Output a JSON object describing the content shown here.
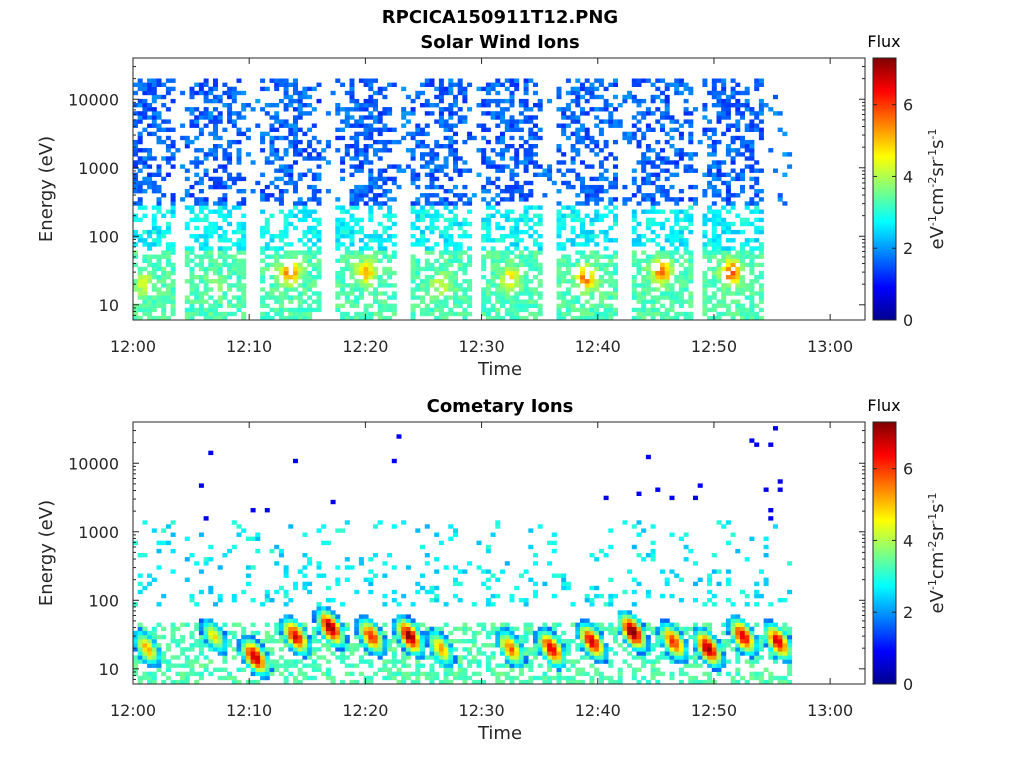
{
  "figure_title": "RPCICA150911T12.PNG",
  "chart_data": [
    {
      "type": "heatmap",
      "title": "Solar Wind Ions",
      "xlabel": "Time",
      "ylabel": "Energy (eV)",
      "x_ticks": [
        "12:00",
        "12:10",
        "12:20",
        "12:30",
        "12:40",
        "12:50",
        "13:00"
      ],
      "x_range_minutes": [
        0,
        63
      ],
      "y_scale": "log",
      "y_ticks": [
        "10",
        "100",
        "1000",
        "10000"
      ],
      "y_range": [
        6,
        40000
      ],
      "colorbar": {
        "label": "Flux",
        "units": "eV-1cm-2sr-1s-1",
        "range": [
          0,
          7.3
        ],
        "ticks": [
          "0",
          "2",
          "4",
          "6"
        ]
      },
      "description_bursts": [
        {
          "center_min": 1.0,
          "peak_low_energy": 20,
          "peak_value": 4.0
        },
        {
          "center_min": 7.0,
          "peak_low_energy": 20,
          "peak_value": 3.5
        },
        {
          "center_min": 13.5,
          "peak_low_energy": 30,
          "peak_value": 5.5
        },
        {
          "center_min": 20.0,
          "peak_low_energy": 30,
          "peak_value": 5.0
        },
        {
          "center_min": 26.5,
          "peak_low_energy": 20,
          "peak_value": 4.0
        },
        {
          "center_min": 32.5,
          "peak_low_energy": 25,
          "peak_value": 4.5
        },
        {
          "center_min": 39.0,
          "peak_low_energy": 25,
          "peak_value": 5.5
        },
        {
          "center_min": 45.5,
          "peak_low_energy": 30,
          "peak_value": 5.5
        },
        {
          "center_min": 51.5,
          "peak_low_energy": 30,
          "peak_value": 6.0
        }
      ]
    },
    {
      "type": "heatmap",
      "title": "Cometary Ions",
      "xlabel": "Time",
      "ylabel": "Energy (eV)",
      "x_ticks": [
        "12:00",
        "12:10",
        "12:20",
        "12:30",
        "12:40",
        "12:50",
        "13:00"
      ],
      "x_range_minutes": [
        0,
        63
      ],
      "y_scale": "log",
      "y_ticks": [
        "10",
        "100",
        "1000",
        "10000"
      ],
      "y_range": [
        6,
        40000
      ],
      "colorbar": {
        "label": "Flux",
        "units": "eV-1cm-2sr-1s-1",
        "range": [
          0,
          7.3
        ],
        "ticks": [
          "0",
          "2",
          "4",
          "6"
        ]
      },
      "description_blobs": [
        {
          "center_min": 1.2,
          "peak_energy": 20,
          "peak_value": 5.0
        },
        {
          "center_min": 7.0,
          "peak_energy": 30,
          "peak_value": 4.5
        },
        {
          "center_min": 10.5,
          "peak_energy": 15,
          "peak_value": 6.8
        },
        {
          "center_min": 14.0,
          "peak_energy": 30,
          "peak_value": 6.5
        },
        {
          "center_min": 17.0,
          "peak_energy": 40,
          "peak_value": 7.0
        },
        {
          "center_min": 20.5,
          "peak_energy": 30,
          "peak_value": 6.0
        },
        {
          "center_min": 23.8,
          "peak_energy": 30,
          "peak_value": 7.0
        },
        {
          "center_min": 26.5,
          "peak_energy": 20,
          "peak_value": 5.0
        },
        {
          "center_min": 32.5,
          "peak_energy": 20,
          "peak_value": 5.5
        },
        {
          "center_min": 36.0,
          "peak_energy": 20,
          "peak_value": 6.5
        },
        {
          "center_min": 39.5,
          "peak_energy": 25,
          "peak_value": 6.5
        },
        {
          "center_min": 43.0,
          "peak_energy": 35,
          "peak_value": 7.3
        },
        {
          "center_min": 46.5,
          "peak_energy": 25,
          "peak_value": 6.0
        },
        {
          "center_min": 49.5,
          "peak_energy": 20,
          "peak_value": 7.0
        },
        {
          "center_min": 52.5,
          "peak_energy": 30,
          "peak_value": 6.5
        },
        {
          "center_min": 55.5,
          "peak_energy": 25,
          "peak_value": 6.5
        }
      ]
    }
  ]
}
